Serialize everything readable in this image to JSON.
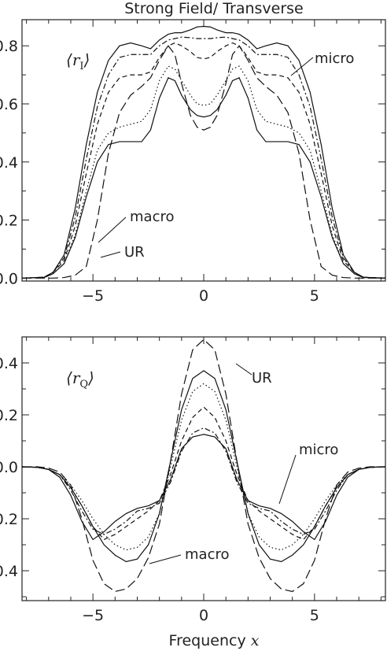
{
  "figure": {
    "title": "Strong Field/ Transverse",
    "xlabel_text": "Frequency",
    "xlabel_var": "x"
  },
  "chart_data": [
    {
      "type": "line",
      "panel_label": "⟨r_I⟩",
      "panel_label_main": "r",
      "panel_label_sub": "I",
      "xlim": [
        -8.2,
        8.2
      ],
      "ylim": [
        -0.01,
        0.89
      ],
      "xticks": [
        -5,
        0,
        5
      ],
      "xtick_labels": [
        "−5",
        "0",
        "5"
      ],
      "yticks": [
        0.0,
        0.2,
        0.4,
        0.6,
        0.8
      ],
      "ytick_labels": [
        "0.0",
        "0.2",
        "0.4",
        "0.6",
        "0.8"
      ],
      "annotations": [
        "micro",
        "macro",
        "UR"
      ],
      "x": [
        -8.2,
        -7.2,
        -6.8,
        -6.3,
        -5.8,
        -5.3,
        -4.8,
        -4.3,
        -3.8,
        -3.3,
        -2.8,
        -2.4,
        -2.0,
        -1.6,
        -1.3,
        -1.0,
        -0.6,
        -0.3,
        0.0,
        0.3,
        0.6,
        1.0,
        1.3,
        1.6,
        2.0,
        2.4,
        2.8,
        3.3,
        3.8,
        4.3,
        4.8,
        5.3,
        5.8,
        6.3,
        6.8,
        7.2,
        8.2
      ],
      "series": [
        {
          "values": [
            0.0,
            0.003,
            0.02,
            0.08,
            0.24,
            0.46,
            0.64,
            0.75,
            0.8,
            0.81,
            0.8,
            0.79,
            0.82,
            0.84,
            0.845,
            0.845,
            0.855,
            0.865,
            0.867,
            0.865,
            0.855,
            0.845,
            0.845,
            0.84,
            0.82,
            0.79,
            0.8,
            0.81,
            0.8,
            0.75,
            0.64,
            0.46,
            0.24,
            0.08,
            0.02,
            0.003,
            0.0
          ],
          "dash": ""
        },
        {
          "values": [
            0.0,
            0.003,
            0.02,
            0.07,
            0.21,
            0.41,
            0.59,
            0.7,
            0.76,
            0.77,
            0.77,
            0.77,
            0.8,
            0.82,
            0.825,
            0.83,
            0.828,
            0.825,
            0.825,
            0.825,
            0.828,
            0.83,
            0.825,
            0.82,
            0.8,
            0.77,
            0.77,
            0.77,
            0.76,
            0.7,
            0.59,
            0.41,
            0.21,
            0.07,
            0.02,
            0.003,
            0.0
          ],
          "dash": "7,3,2,3"
        },
        {
          "values": [
            0.0,
            0.003,
            0.02,
            0.06,
            0.18,
            0.36,
            0.53,
            0.64,
            0.69,
            0.7,
            0.7,
            0.71,
            0.76,
            0.8,
            0.81,
            0.8,
            0.78,
            0.76,
            0.755,
            0.76,
            0.78,
            0.8,
            0.81,
            0.8,
            0.76,
            0.71,
            0.7,
            0.7,
            0.69,
            0.64,
            0.53,
            0.36,
            0.18,
            0.06,
            0.02,
            0.003,
            0.0
          ],
          "dash": "6,4"
        },
        {
          "values": [
            0.0,
            0.002,
            0.015,
            0.05,
            0.15,
            0.3,
            0.44,
            0.5,
            0.52,
            0.53,
            0.54,
            0.58,
            0.68,
            0.73,
            0.72,
            0.68,
            0.63,
            0.6,
            0.595,
            0.6,
            0.63,
            0.68,
            0.72,
            0.73,
            0.68,
            0.58,
            0.54,
            0.53,
            0.52,
            0.5,
            0.44,
            0.3,
            0.15,
            0.05,
            0.015,
            0.002,
            0.0
          ],
          "dash": "1.5,3"
        },
        {
          "values": [
            0.0,
            0.002,
            0.015,
            0.05,
            0.14,
            0.28,
            0.4,
            0.46,
            0.47,
            0.47,
            0.47,
            0.51,
            0.62,
            0.69,
            0.68,
            0.63,
            0.58,
            0.56,
            0.555,
            0.56,
            0.58,
            0.63,
            0.68,
            0.69,
            0.62,
            0.51,
            0.47,
            0.47,
            0.47,
            0.46,
            0.4,
            0.28,
            0.14,
            0.05,
            0.015,
            0.002,
            0.0
          ],
          "dash": ""
        },
        {
          "values": [
            0.0,
            0.0,
            0.0,
            0.002,
            0.01,
            0.04,
            0.2,
            0.43,
            0.57,
            0.63,
            0.66,
            0.69,
            0.75,
            0.8,
            0.77,
            0.67,
            0.56,
            0.52,
            0.51,
            0.52,
            0.56,
            0.67,
            0.77,
            0.8,
            0.75,
            0.69,
            0.66,
            0.63,
            0.57,
            0.43,
            0.2,
            0.04,
            0.01,
            0.002,
            0.0,
            0.0,
            0.0
          ],
          "dash": "12,5"
        }
      ]
    },
    {
      "type": "line",
      "panel_label": "⟨r_Q⟩",
      "panel_label_main": "r",
      "panel_label_sub": "Q",
      "xlim": [
        -8.2,
        8.2
      ],
      "ylim": [
        -0.515,
        0.5
      ],
      "xticks": [
        -5,
        0,
        5
      ],
      "xtick_labels": [
        "−5",
        "0",
        "5"
      ],
      "yticks": [
        -0.4,
        -0.2,
        0.0,
        0.2,
        0.4
      ],
      "ytick_labels": [
        "−0.4",
        "−0.2",
        "0.0",
        "0.2",
        "0.4"
      ],
      "annotations": [
        "UR",
        "micro",
        "macro"
      ],
      "x": [
        -8.2,
        -7.5,
        -7.0,
        -6.5,
        -6.0,
        -5.5,
        -5.0,
        -4.5,
        -4.0,
        -3.5,
        -3.0,
        -2.5,
        -2.0,
        -1.5,
        -1.0,
        -0.5,
        0.0,
        0.5,
        1.0,
        1.5,
        2.0,
        2.5,
        3.0,
        3.5,
        4.0,
        4.5,
        5.0,
        5.5,
        6.0,
        6.5,
        7.0,
        7.5,
        8.2
      ],
      "series": [
        {
          "values": [
            0.0,
            -0.002,
            -0.01,
            -0.04,
            -0.11,
            -0.21,
            -0.28,
            -0.25,
            -0.21,
            -0.18,
            -0.16,
            -0.15,
            -0.13,
            -0.05,
            0.07,
            0.115,
            0.125,
            0.115,
            0.07,
            -0.05,
            -0.13,
            -0.15,
            -0.16,
            -0.18,
            -0.21,
            -0.25,
            -0.28,
            -0.21,
            -0.11,
            -0.04,
            -0.01,
            -0.002,
            0.0
          ],
          "dash": ""
        },
        {
          "values": [
            0.0,
            -0.002,
            -0.01,
            -0.03,
            -0.09,
            -0.17,
            -0.24,
            -0.26,
            -0.24,
            -0.21,
            -0.17,
            -0.16,
            -0.14,
            -0.06,
            0.06,
            0.13,
            0.15,
            0.13,
            0.06,
            -0.06,
            -0.14,
            -0.16,
            -0.17,
            -0.21,
            -0.24,
            -0.26,
            -0.24,
            -0.17,
            -0.09,
            -0.03,
            -0.01,
            -0.002,
            0.0
          ],
          "dash": "7,3,2,3"
        },
        {
          "values": [
            0.0,
            -0.002,
            -0.01,
            -0.03,
            -0.08,
            -0.15,
            -0.23,
            -0.28,
            -0.26,
            -0.23,
            -0.2,
            -0.17,
            -0.13,
            -0.03,
            0.1,
            0.19,
            0.23,
            0.19,
            0.1,
            -0.03,
            -0.13,
            -0.17,
            -0.2,
            -0.23,
            -0.26,
            -0.28,
            -0.23,
            -0.15,
            -0.08,
            -0.03,
            -0.01,
            -0.002,
            0.0
          ],
          "dash": "6,4"
        },
        {
          "values": [
            0.0,
            -0.002,
            -0.01,
            -0.03,
            -0.07,
            -0.13,
            -0.2,
            -0.26,
            -0.3,
            -0.32,
            -0.31,
            -0.27,
            -0.18,
            0.0,
            0.18,
            0.29,
            0.32,
            0.29,
            0.18,
            0.0,
            -0.18,
            -0.27,
            -0.31,
            -0.32,
            -0.3,
            -0.26,
            -0.2,
            -0.13,
            -0.07,
            -0.03,
            -0.01,
            -0.002,
            0.0
          ],
          "dash": "1.5,3"
        },
        {
          "values": [
            0.0,
            -0.002,
            -0.01,
            -0.03,
            -0.08,
            -0.15,
            -0.23,
            -0.3,
            -0.34,
            -0.365,
            -0.355,
            -0.3,
            -0.18,
            0.02,
            0.22,
            0.34,
            0.37,
            0.34,
            0.22,
            0.02,
            -0.18,
            -0.3,
            -0.355,
            -0.365,
            -0.34,
            -0.3,
            -0.23,
            -0.15,
            -0.08,
            -0.03,
            -0.01,
            -0.002,
            0.0
          ],
          "dash": ""
        },
        {
          "values": [
            0.0,
            0.0,
            -0.005,
            -0.02,
            -0.07,
            -0.2,
            -0.36,
            -0.45,
            -0.48,
            -0.47,
            -0.43,
            -0.35,
            -0.22,
            0.02,
            0.28,
            0.45,
            0.49,
            0.45,
            0.28,
            0.02,
            -0.22,
            -0.35,
            -0.43,
            -0.47,
            -0.48,
            -0.45,
            -0.36,
            -0.2,
            -0.07,
            -0.02,
            -0.005,
            0.0,
            0.0
          ],
          "dash": "12,5"
        }
      ]
    }
  ]
}
